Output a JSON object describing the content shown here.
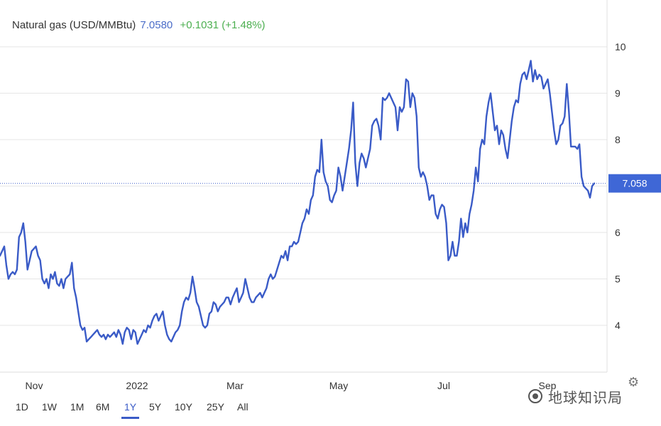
{
  "header": {
    "title": "Natural gas (USD/MMBtu)",
    "price": "7.0580",
    "change": "+0.1031 (+1.48%)"
  },
  "current_price_label": "7.058",
  "ranges": [
    "1D",
    "1W",
    "1M",
    "6M",
    "1Y",
    "5Y",
    "10Y",
    "25Y",
    "All"
  ],
  "active_range": "1Y",
  "watermark": "地球知识局",
  "colors": {
    "line": "#3a5bc7",
    "price_tag": "#3f67d6",
    "change_positive": "#4caf50",
    "price_text": "#4a6cc8",
    "grid": "#e6e6e6"
  },
  "icons": {
    "settings": "gear-icon",
    "watermark_logo": "wechat-logo"
  },
  "chart_data": {
    "type": "line",
    "title": "",
    "xlabel": "",
    "ylabel": "",
    "y_axis_position": "right",
    "grid": true,
    "ylim": [
      3.0,
      10.9
    ],
    "xlim": [
      0,
      255
    ],
    "yticks": [
      4,
      5,
      6,
      7,
      8,
      9,
      10
    ],
    "x_tick_labels": [
      {
        "label": "Nov",
        "x": 0
      },
      {
        "label": "2022",
        "x": 42
      },
      {
        "label": "Mar",
        "x": 81
      },
      {
        "label": "May",
        "x": 123
      },
      {
        "label": "Jul",
        "x": 165
      },
      {
        "label": "Sep",
        "x": 207
      }
    ],
    "last_value": 7.058,
    "series": [
      {
        "values": [
          5.5,
          5.6,
          5.7,
          5.3,
          5.0,
          5.1,
          5.15,
          5.1,
          5.2,
          5.9,
          6.0,
          6.2,
          5.8,
          5.2,
          5.4,
          5.6,
          5.65,
          5.7,
          5.5,
          5.4,
          5.0,
          4.9,
          5.0,
          4.8,
          5.1,
          5.0,
          5.15,
          4.9,
          4.85,
          5.0,
          4.8,
          5.0,
          5.05,
          5.1,
          5.35,
          4.8,
          4.6,
          4.3,
          4.0,
          3.9,
          3.95,
          3.65,
          3.7,
          3.75,
          3.8,
          3.85,
          3.9,
          3.8,
          3.75,
          3.8,
          3.7,
          3.8,
          3.75,
          3.8,
          3.85,
          3.75,
          3.9,
          3.8,
          3.6,
          3.85,
          3.95,
          3.9,
          3.7,
          3.9,
          3.85,
          3.6,
          3.7,
          3.8,
          3.9,
          3.85,
          4.0,
          3.95,
          4.1,
          4.2,
          4.25,
          4.1,
          4.2,
          4.3,
          4.0,
          3.8,
          3.7,
          3.65,
          3.75,
          3.85,
          3.9,
          4.0,
          4.3,
          4.5,
          4.6,
          4.55,
          4.7,
          5.05,
          4.8,
          4.5,
          4.4,
          4.2,
          4.0,
          3.95,
          4.0,
          4.25,
          4.3,
          4.5,
          4.45,
          4.3,
          4.4,
          4.45,
          4.5,
          4.6,
          4.6,
          4.45,
          4.6,
          4.7,
          4.8,
          4.5,
          4.6,
          4.7,
          5.0,
          4.8,
          4.6,
          4.5,
          4.5,
          4.6,
          4.65,
          4.7,
          4.6,
          4.7,
          4.8,
          5.0,
          5.1,
          5.0,
          5.05,
          5.2,
          5.35,
          5.5,
          5.45,
          5.6,
          5.4,
          5.7,
          5.7,
          5.8,
          5.75,
          5.8,
          6.0,
          6.2,
          6.3,
          6.5,
          6.4,
          6.7,
          6.8,
          7.2,
          7.35,
          7.3,
          8.0,
          7.3,
          7.1,
          7.0,
          6.7,
          6.65,
          6.8,
          6.9,
          7.4,
          7.2,
          6.9,
          7.2,
          7.5,
          7.8,
          8.2,
          8.8,
          7.5,
          7.0,
          7.5,
          7.7,
          7.6,
          7.4,
          7.6,
          7.8,
          8.3,
          8.4,
          8.45,
          8.3,
          8.0,
          8.9,
          8.85,
          8.9,
          9.0,
          8.9,
          8.8,
          8.7,
          8.2,
          8.7,
          8.6,
          8.7,
          9.3,
          9.25,
          8.7,
          9.0,
          8.9,
          8.5,
          7.4,
          7.2,
          7.3,
          7.2,
          7.0,
          6.7,
          6.8,
          6.8,
          6.4,
          6.3,
          6.5,
          6.6,
          6.55,
          6.2,
          5.4,
          5.5,
          5.8,
          5.5,
          5.5,
          5.8,
          6.3,
          5.9,
          6.2,
          6.0,
          6.4,
          6.6,
          6.9,
          7.4,
          7.1,
          7.8,
          8.0,
          7.9,
          8.5,
          8.8,
          9.0,
          8.6,
          8.2,
          8.3,
          7.9,
          8.2,
          8.1,
          7.8,
          7.6,
          8.0,
          8.4,
          8.7,
          8.85,
          8.8,
          9.2,
          9.4,
          9.45,
          9.3,
          9.5,
          9.7,
          9.25,
          9.5,
          9.3,
          9.4,
          9.35,
          9.1,
          9.2,
          9.3,
          9.0,
          8.6,
          8.2,
          7.9,
          8.0,
          8.3,
          8.35,
          8.5,
          9.2,
          8.6,
          7.85,
          7.85,
          7.85,
          7.8,
          7.9,
          7.2,
          7.0,
          6.95,
          6.9,
          6.75,
          7.0,
          7.058
        ]
      }
    ]
  }
}
